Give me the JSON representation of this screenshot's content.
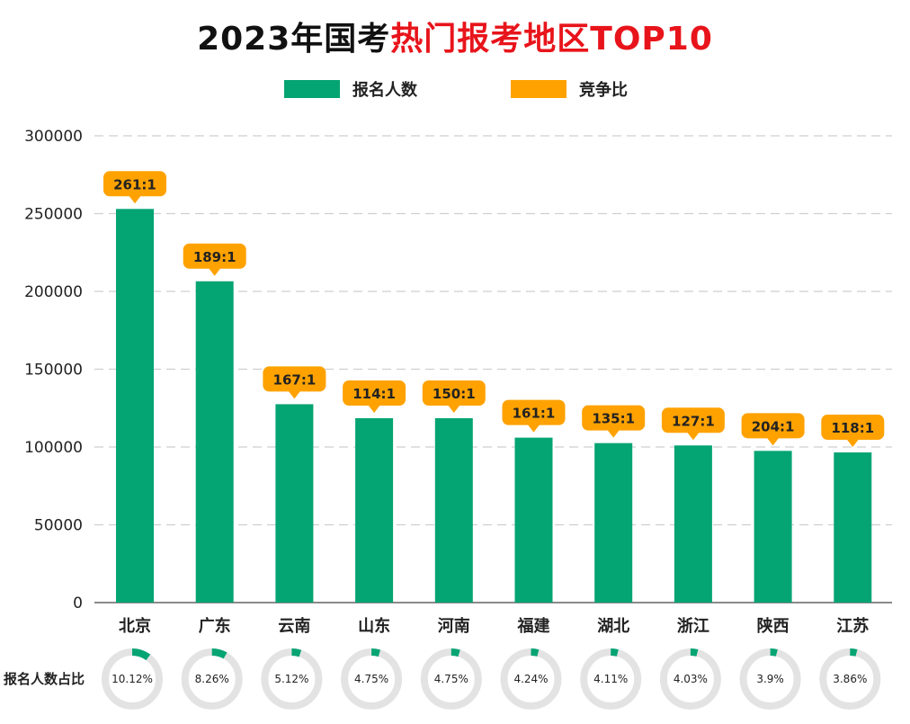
{
  "title": {
    "part1": "2023年国考",
    "part2": "热门报考地区TOP10"
  },
  "legend": {
    "applicants": "报名人数",
    "ratio": "竞争比"
  },
  "share_row_label": "报名人数占比",
  "colors": {
    "bar": "#05a473",
    "ratio": "#ffa200",
    "ring_track": "#e3e3e3",
    "title_red": "#e8141b",
    "grid": "#cfcfcf"
  },
  "chart_data": {
    "type": "bar",
    "title": "2023年国考热门报考地区TOP10",
    "xlabel": "",
    "ylabel": "",
    "ylim": [
      0,
      300000
    ],
    "yticks": [
      "0",
      "50000",
      "100000",
      "150000",
      "200000",
      "250000",
      "300000"
    ],
    "grid": "horizontal dashed",
    "legend_position": "top-center",
    "categories": [
      "北京",
      "广东",
      "云南",
      "山东",
      "河南",
      "福建",
      "湖北",
      "浙江",
      "陕西",
      "江苏"
    ],
    "series": [
      {
        "name": "报名人数",
        "values": [
          253000,
          206500,
          127500,
          118500,
          118500,
          106000,
          102500,
          101000,
          97500,
          96500
        ]
      }
    ],
    "ratios": [
      "261:1",
      "189:1",
      "167:1",
      "114:1",
      "150:1",
      "161:1",
      "135:1",
      "127:1",
      "204:1",
      "118:1"
    ],
    "shares": [
      "10.12%",
      "8.26%",
      "5.12%",
      "4.75%",
      "4.75%",
      "4.24%",
      "4.11%",
      "4.03%",
      "3.9%",
      "3.86%"
    ],
    "share_values": [
      10.12,
      8.26,
      5.12,
      4.75,
      4.75,
      4.24,
      4.11,
      4.03,
      3.9,
      3.86
    ]
  }
}
